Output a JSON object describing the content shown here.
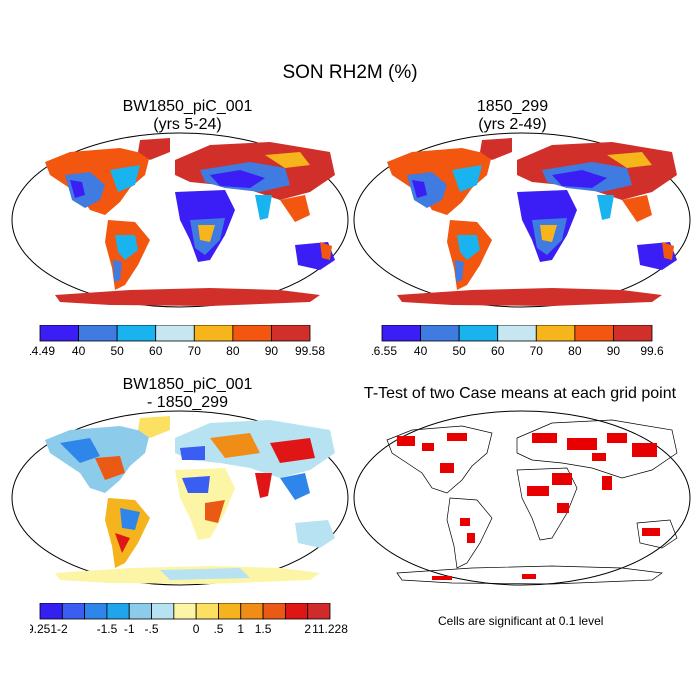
{
  "figure": {
    "title": "SON RH2M (%)",
    "panels": [
      {
        "id": "case1",
        "title_line1": "BW1850_piC_001",
        "title_line2": "(yrs 5-24)",
        "colorbar": {
          "labels": [
            "14.49",
            "40",
            "50",
            "60",
            "70",
            "80",
            "90",
            "99.58"
          ]
        }
      },
      {
        "id": "case2",
        "title_line1": "1850_299",
        "title_line2": "(yrs 2-49)",
        "colorbar": {
          "labels": [
            "16.55",
            "40",
            "50",
            "60",
            "70",
            "80",
            "90",
            "99.6"
          ]
        }
      },
      {
        "id": "diff",
        "title_line1": "BW1850_piC_001",
        "title_line2": "- 1850_299",
        "colorbar": {
          "labels": [
            "-9.251",
            "-2",
            "-1.5",
            "-1",
            "-.5",
            "0",
            ".5",
            "1",
            "1.5",
            "2",
            "11.228"
          ]
        }
      },
      {
        "id": "ttest",
        "title_line1": "T-Test of two Case means at each grid point",
        "title_line2": "",
        "note": "Cells are significant at 0.1 level"
      }
    ]
  },
  "colors": {
    "abs_scale": [
      "#3a1ef5",
      "#3f7be0",
      "#19b4ef",
      "#c6e7f2",
      "#f7b51c",
      "#f2560f",
      "#d1302a"
    ],
    "diff_scale": [
      "#3520f2",
      "#3a5ef2",
      "#2f86ea",
      "#1ea5ee",
      "#8dcbeb",
      "#b7e2f2",
      "#fcf5a6",
      "#fce062",
      "#f5b41e",
      "#ef8d16",
      "#ea5a14",
      "#e01515",
      "#d02a2a"
    ],
    "significant": "#e80000"
  }
}
